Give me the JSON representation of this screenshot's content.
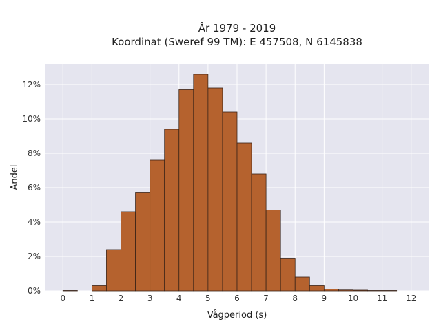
{
  "chart_data": {
    "type": "bar",
    "title_line1": "År 1979 - 2019",
    "title_line2": "Koordinat (Sweref 99 TM): E 457508, N 6145838",
    "xlabel": "Vågperiod (s)",
    "ylabel": "Andel",
    "xlim": [
      -0.6,
      12.6
    ],
    "ylim": [
      0,
      13.2
    ],
    "x_ticks": [
      0,
      1,
      2,
      3,
      4,
      5,
      6,
      7,
      8,
      9,
      10,
      11,
      12
    ],
    "x_tick_labels": [
      "0",
      "1",
      "2",
      "3",
      "4",
      "5",
      "6",
      "7",
      "8",
      "9",
      "10",
      "11",
      "12"
    ],
    "y_ticks": [
      0,
      2,
      4,
      6,
      8,
      10,
      12
    ],
    "y_tick_labels": [
      "0%",
      "2%",
      "4%",
      "6%",
      "8%",
      "10%",
      "12%"
    ],
    "bin_width": 0.5,
    "bins": [
      {
        "x0": 0.0,
        "value": 0.02
      },
      {
        "x0": 1.0,
        "value": 0.3
      },
      {
        "x0": 1.5,
        "value": 2.4
      },
      {
        "x0": 2.0,
        "value": 4.6
      },
      {
        "x0": 2.5,
        "value": 5.7
      },
      {
        "x0": 3.0,
        "value": 7.6
      },
      {
        "x0": 3.5,
        "value": 9.4
      },
      {
        "x0": 4.0,
        "value": 11.7
      },
      {
        "x0": 4.5,
        "value": 12.6
      },
      {
        "x0": 5.0,
        "value": 11.8
      },
      {
        "x0": 5.5,
        "value": 10.4
      },
      {
        "x0": 6.0,
        "value": 8.6
      },
      {
        "x0": 6.5,
        "value": 6.8
      },
      {
        "x0": 7.0,
        "value": 4.7
      },
      {
        "x0": 7.5,
        "value": 1.9
      },
      {
        "x0": 8.0,
        "value": 0.8
      },
      {
        "x0": 8.5,
        "value": 0.3
      },
      {
        "x0": 9.0,
        "value": 0.1
      },
      {
        "x0": 9.5,
        "value": 0.05
      },
      {
        "x0": 10.0,
        "value": 0.04
      },
      {
        "x0": 10.5,
        "value": 0.02
      },
      {
        "x0": 11.0,
        "value": 0.02
      }
    ],
    "bar_color": "#b5622e",
    "bar_edge_color": "#3a2418",
    "background_color": "#e5e5ef",
    "grid": true,
    "grid_color": "#ffffff"
  }
}
